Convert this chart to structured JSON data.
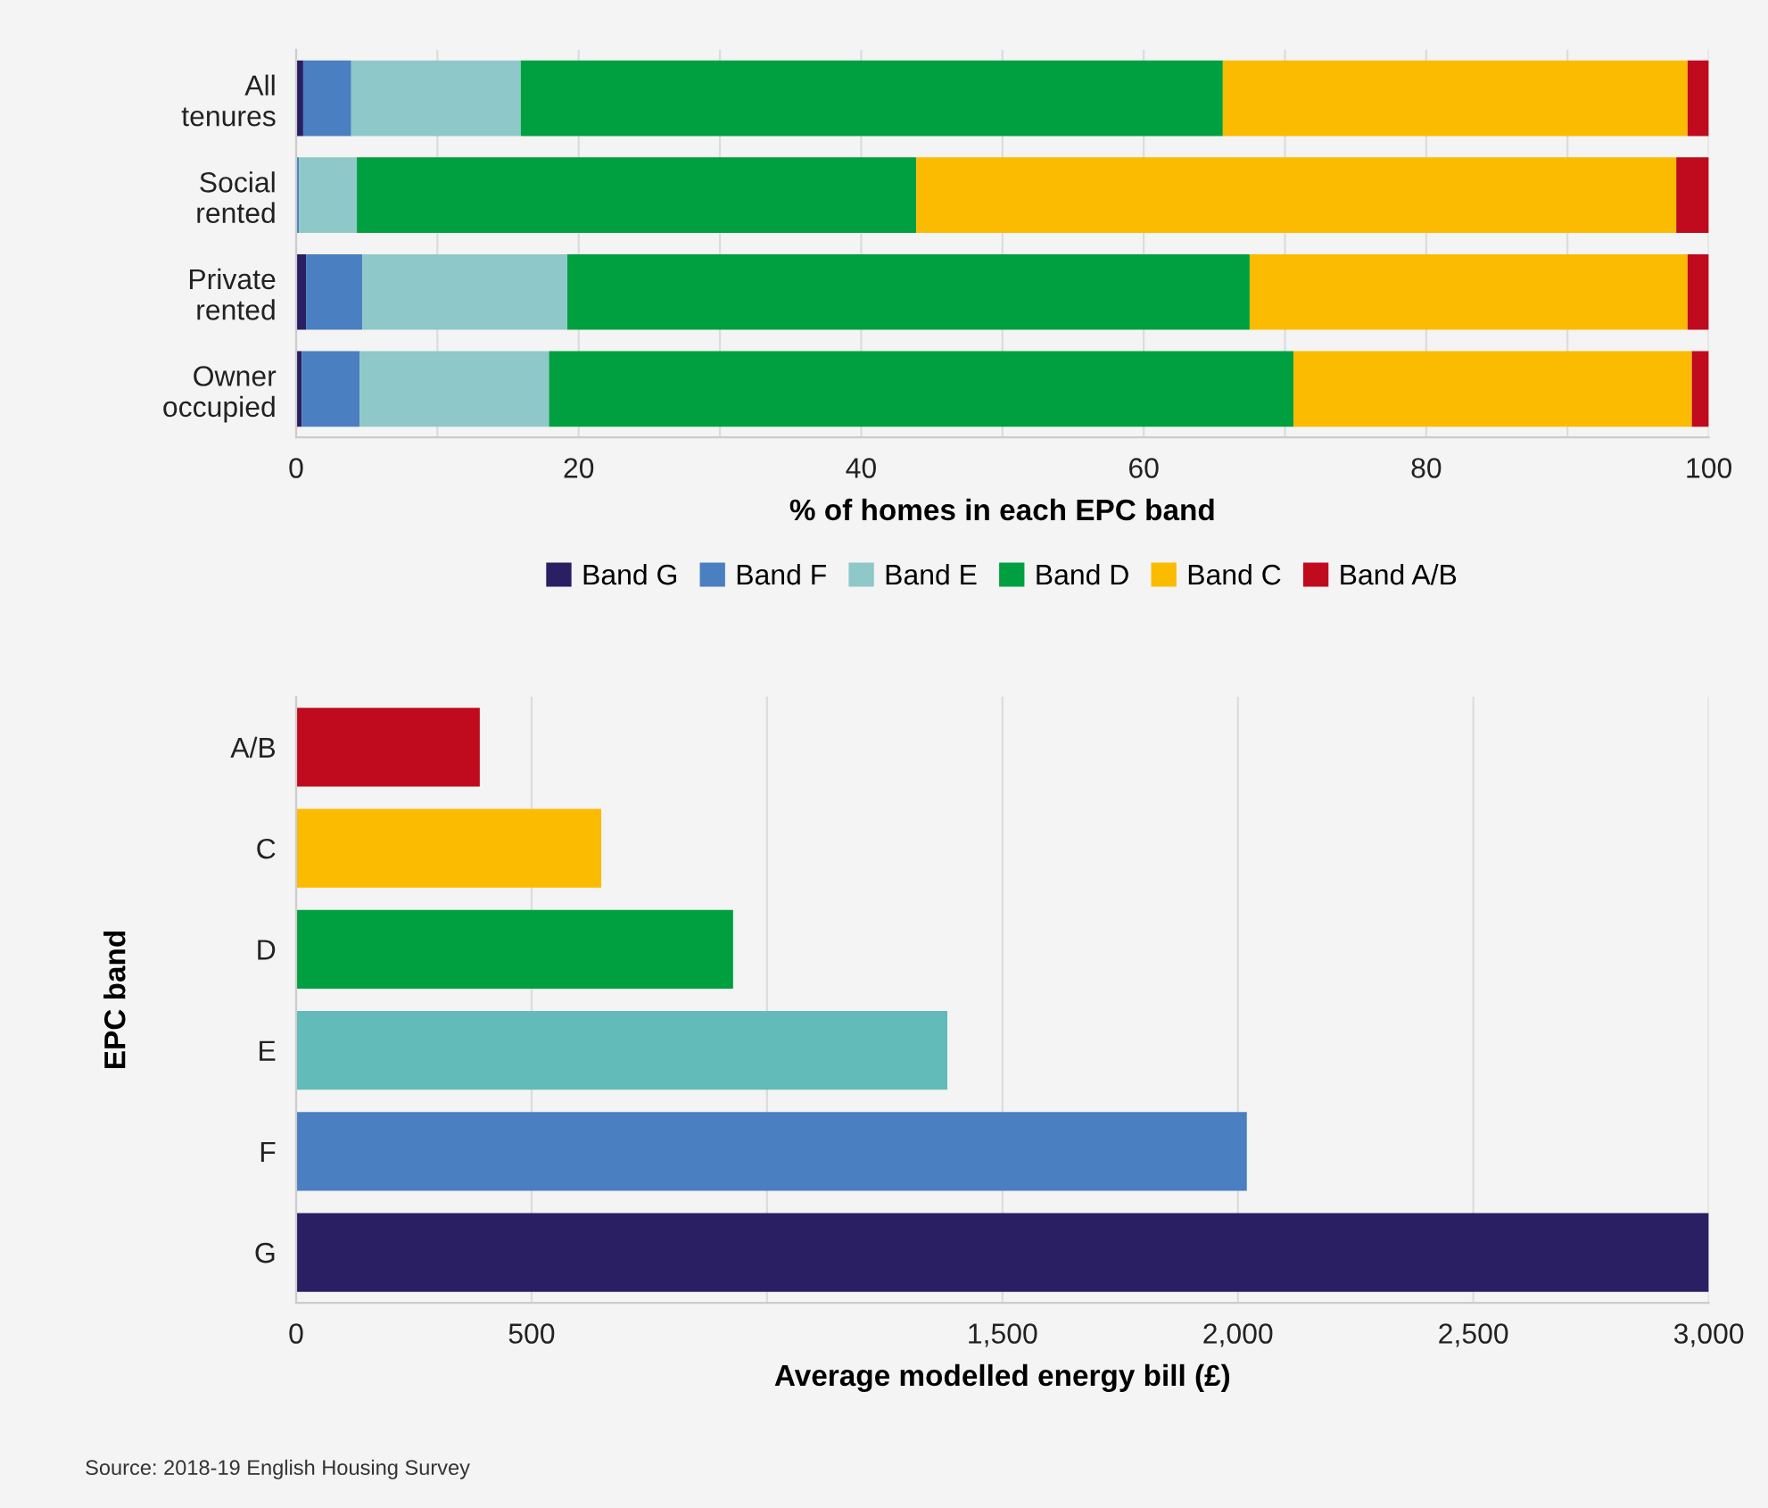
{
  "chart_data": [
    {
      "type": "bar",
      "orientation": "horizontal",
      "stacked": true,
      "categories": [
        "All\ntenures",
        "Social\nrented",
        "Private\nrented",
        "Owner\noccupied"
      ],
      "series": [
        {
          "name": "Band G",
          "color": "#2a1f63",
          "values": [
            0.5,
            0,
            0.7,
            0.4
          ]
        },
        {
          "name": "Band F",
          "color": "#4a7fc1",
          "values": [
            3.4,
            0.2,
            4.0,
            4.1
          ]
        },
        {
          "name": "Band E",
          "color": "#8ec8c8",
          "values": [
            12.0,
            4.1,
            14.5,
            13.4
          ]
        },
        {
          "name": "Band D",
          "color": "#00a040",
          "values": [
            49.7,
            39.6,
            48.3,
            52.7
          ]
        },
        {
          "name": "Band C",
          "color": "#fbbb00",
          "values": [
            32.9,
            53.8,
            31.0,
            28.2
          ]
        },
        {
          "name": "Band A/B",
          "color": "#c00a1e",
          "values": [
            1.5,
            2.3,
            1.5,
            1.2
          ]
        }
      ],
      "xlim": [
        0,
        100
      ],
      "xticks": [
        0,
        {
          "value": 10,
          "label": null
        },
        20,
        {
          "value": 30,
          "label": null
        },
        40,
        {
          "value": 50,
          "label": null
        },
        60,
        {
          "value": 70,
          "label": null
        },
        80,
        {
          "value": 90,
          "label": null
        },
        100
      ],
      "xlabel": "% of homes in each EPC band",
      "grid": "x",
      "legend": "bottom"
    },
    {
      "type": "bar",
      "orientation": "horizontal",
      "categories": [
        "A/B",
        "C",
        "D",
        "E",
        "F",
        "G"
      ],
      "values": [
        390,
        648,
        928,
        1383,
        2019,
        3000
      ],
      "colors": [
        "#c00a1e",
        "#fbbb00",
        "#00a040",
        "#62bab9",
        "#4a7fc1",
        "#2a1f63"
      ],
      "xlim": [
        0,
        3000
      ],
      "xticks": [
        0,
        500,
        {
          "value": 1000,
          "label": null
        },
        {
          "value": 1500,
          "label": "1,500"
        },
        {
          "value": 2000,
          "label": "2,000"
        },
        {
          "value": 2500,
          "label": "2,500"
        },
        {
          "value": 3000,
          "label": "3,000"
        }
      ],
      "xlabel": "Average modelled energy bill (£)",
      "ylabel": "EPC band",
      "grid": "x",
      "annotations": [
        "Source: 2018-19 English Housing Survey"
      ]
    }
  ]
}
